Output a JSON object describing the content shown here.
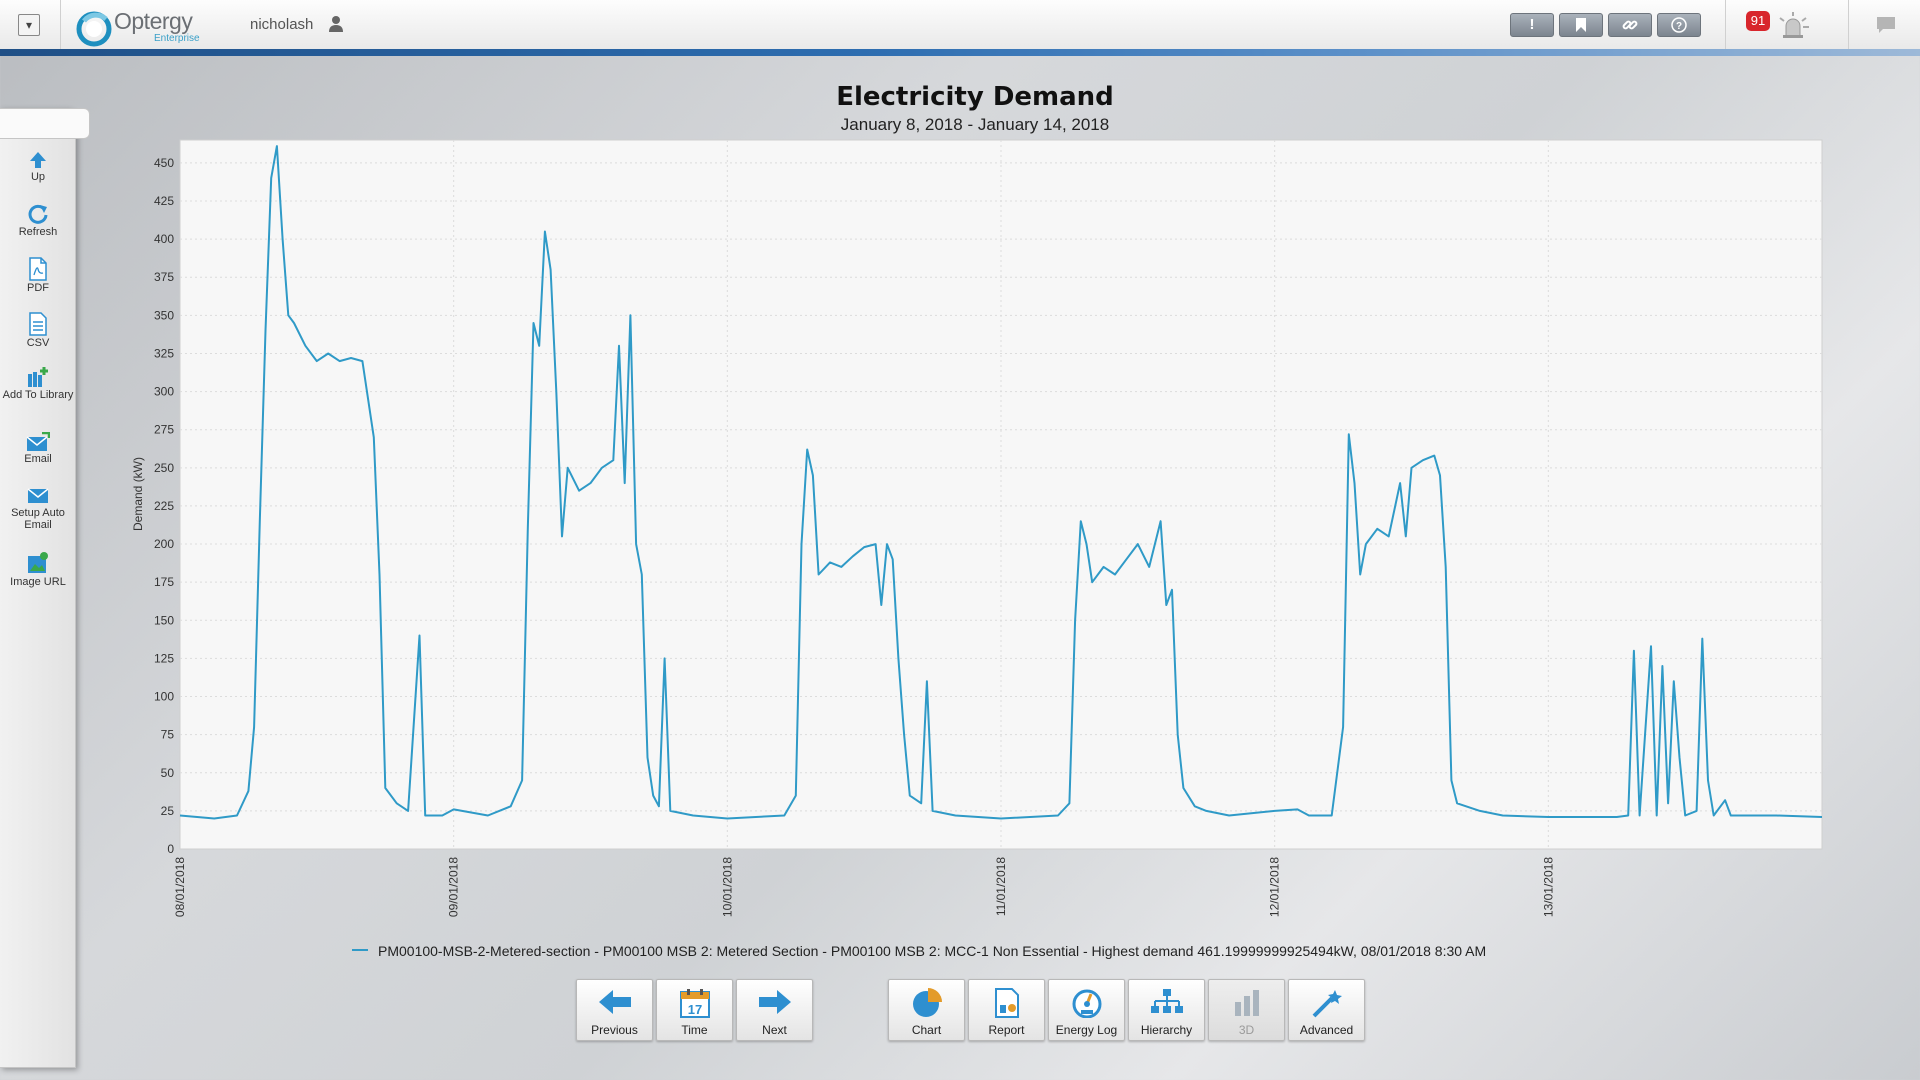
{
  "header": {
    "logo_name": "Optergy",
    "logo_sub": "Enterprise",
    "username": "nicholash",
    "toolbar_buttons": [
      "exclamation-icon",
      "bookmark-icon",
      "link-icon",
      "help-icon"
    ],
    "alarm_count": "91"
  },
  "sidebar": {
    "items": [
      {
        "label": "Up",
        "icon": "up-arrow-icon"
      },
      {
        "label": "Refresh",
        "icon": "refresh-icon"
      },
      {
        "label": "PDF",
        "icon": "pdf-icon"
      },
      {
        "label": "CSV",
        "icon": "csv-icon"
      },
      {
        "label": "Add To Library",
        "icon": "add-library-icon"
      },
      {
        "label": "Email",
        "icon": "email-icon"
      },
      {
        "label": "Setup Auto Email",
        "icon": "auto-email-icon"
      },
      {
        "label": "Image URL",
        "icon": "image-url-icon"
      }
    ]
  },
  "chart_data": {
    "type": "line",
    "title": "Electricity Demand",
    "subtitle": "January 8, 2018 - January 14, 2018",
    "ylabel": "Demand (kW)",
    "xlabel": "",
    "ylim": [
      0,
      465
    ],
    "xlim": [
      0,
      6
    ],
    "yticks": [
      0,
      25,
      50,
      75,
      100,
      125,
      150,
      175,
      200,
      225,
      250,
      275,
      300,
      325,
      350,
      375,
      400,
      425,
      450
    ],
    "xticks": [
      "08/01/2018",
      "09/01/2018",
      "10/01/2018",
      "11/01/2018",
      "12/01/2018",
      "13/01/2018"
    ],
    "grid": true,
    "color": "#2f9ac7",
    "series": [
      {
        "name": "PM00100-MSB-2-Metered-section - PM00100 MSB 2: Metered Section - PM00100 MSB 2: MCC-1 Non Essential - Highest demand 461.19999999925494kW, 08/01/2018 8:30 AM",
        "points": [
          [
            "08/01/2018 00:00",
            22
          ],
          [
            "08/01/2018 03:00",
            20
          ],
          [
            "08/01/2018 05:00",
            22
          ],
          [
            "08/01/2018 06:00",
            38
          ],
          [
            "08/01/2018 06:30",
            80
          ],
          [
            "08/01/2018 07:00",
            215
          ],
          [
            "08/01/2018 07:30",
            340
          ],
          [
            "08/01/2018 08:00",
            440
          ],
          [
            "08/01/2018 08:30",
            461
          ],
          [
            "08/01/2018 09:00",
            400
          ],
          [
            "08/01/2018 09:30",
            350
          ],
          [
            "08/01/2018 10:00",
            345
          ],
          [
            "08/01/2018 11:00",
            330
          ],
          [
            "08/01/2018 12:00",
            320
          ],
          [
            "08/01/2018 13:00",
            325
          ],
          [
            "08/01/2018 14:00",
            320
          ],
          [
            "08/01/2018 15:00",
            322
          ],
          [
            "08/01/2018 16:00",
            320
          ],
          [
            "08/01/2018 17:00",
            270
          ],
          [
            "08/01/2018 17:30",
            180
          ],
          [
            "08/01/2018 18:00",
            40
          ],
          [
            "08/01/2018 19:00",
            30
          ],
          [
            "08/01/2018 20:00",
            25
          ],
          [
            "08/01/2018 21:00",
            140
          ],
          [
            "08/01/2018 21:30",
            22
          ],
          [
            "08/01/2018 23:00",
            22
          ],
          [
            "09/01/2018 00:00",
            26
          ],
          [
            "09/01/2018 03:00",
            22
          ],
          [
            "09/01/2018 05:00",
            28
          ],
          [
            "09/01/2018 06:00",
            45
          ],
          [
            "09/01/2018 06:30",
            210
          ],
          [
            "09/01/2018 07:00",
            345
          ],
          [
            "09/01/2018 07:30",
            330
          ],
          [
            "09/01/2018 08:00",
            405
          ],
          [
            "09/01/2018 08:30",
            380
          ],
          [
            "09/01/2018 09:00",
            300
          ],
          [
            "09/01/2018 09:30",
            205
          ],
          [
            "09/01/2018 10:00",
            250
          ],
          [
            "09/01/2018 11:00",
            235
          ],
          [
            "09/01/2018 12:00",
            240
          ],
          [
            "09/01/2018 13:00",
            250
          ],
          [
            "09/01/2018 14:00",
            255
          ],
          [
            "09/01/2018 14:30",
            330
          ],
          [
            "09/01/2018 15:00",
            240
          ],
          [
            "09/01/2018 15:30",
            350
          ],
          [
            "09/01/2018 16:00",
            200
          ],
          [
            "09/01/2018 16:30",
            180
          ],
          [
            "09/01/2018 17:00",
            60
          ],
          [
            "09/01/2018 17:30",
            35
          ],
          [
            "09/01/2018 18:00",
            28
          ],
          [
            "09/01/2018 18:30",
            125
          ],
          [
            "09/01/2018 19:00",
            25
          ],
          [
            "09/01/2018 21:00",
            22
          ],
          [
            "10/01/2018 00:00",
            20
          ],
          [
            "10/01/2018 05:00",
            22
          ],
          [
            "10/01/2018 06:00",
            35
          ],
          [
            "10/01/2018 06:30",
            200
          ],
          [
            "10/01/2018 07:00",
            262
          ],
          [
            "10/01/2018 07:30",
            245
          ],
          [
            "10/01/2018 08:00",
            180
          ],
          [
            "10/01/2018 09:00",
            188
          ],
          [
            "10/01/2018 10:00",
            185
          ],
          [
            "10/01/2018 11:00",
            192
          ],
          [
            "10/01/2018 12:00",
            198
          ],
          [
            "10/01/2018 13:00",
            200
          ],
          [
            "10/01/2018 13:30",
            160
          ],
          [
            "10/01/2018 14:00",
            200
          ],
          [
            "10/01/2018 14:30",
            190
          ],
          [
            "10/01/2018 15:00",
            125
          ],
          [
            "10/01/2018 15:30",
            75
          ],
          [
            "10/01/2018 16:00",
            35
          ],
          [
            "10/01/2018 17:00",
            30
          ],
          [
            "10/01/2018 17:30",
            110
          ],
          [
            "10/01/2018 18:00",
            25
          ],
          [
            "10/01/2018 20:00",
            22
          ],
          [
            "11/01/2018 00:00",
            20
          ],
          [
            "11/01/2018 05:00",
            22
          ],
          [
            "11/01/2018 06:00",
            30
          ],
          [
            "11/01/2018 06:30",
            150
          ],
          [
            "11/01/2018 07:00",
            215
          ],
          [
            "11/01/2018 07:30",
            200
          ],
          [
            "11/01/2018 08:00",
            175
          ],
          [
            "11/01/2018 09:00",
            185
          ],
          [
            "11/01/2018 10:00",
            180
          ],
          [
            "11/01/2018 11:00",
            190
          ],
          [
            "11/01/2018 12:00",
            200
          ],
          [
            "11/01/2018 13:00",
            185
          ],
          [
            "11/01/2018 14:00",
            215
          ],
          [
            "11/01/2018 14:30",
            160
          ],
          [
            "11/01/2018 15:00",
            170
          ],
          [
            "11/01/2018 15:30",
            75
          ],
          [
            "11/01/2018 16:00",
            40
          ],
          [
            "11/01/2018 17:00",
            28
          ],
          [
            "11/01/2018 18:00",
            25
          ],
          [
            "11/01/2018 20:00",
            22
          ],
          [
            "12/01/2018 00:00",
            25
          ],
          [
            "12/01/2018 02:00",
            26
          ],
          [
            "12/01/2018 03:00",
            22
          ],
          [
            "12/01/2018 05:00",
            22
          ],
          [
            "12/01/2018 06:00",
            80
          ],
          [
            "12/01/2018 06:30",
            272
          ],
          [
            "12/01/2018 07:00",
            240
          ],
          [
            "12/01/2018 07:30",
            180
          ],
          [
            "12/01/2018 08:00",
            200
          ],
          [
            "12/01/2018 09:00",
            210
          ],
          [
            "12/01/2018 10:00",
            205
          ],
          [
            "12/01/2018 11:00",
            240
          ],
          [
            "12/01/2018 11:30",
            205
          ],
          [
            "12/01/2018 12:00",
            250
          ],
          [
            "12/01/2018 13:00",
            255
          ],
          [
            "12/01/2018 14:00",
            258
          ],
          [
            "12/01/2018 14:30",
            245
          ],
          [
            "12/01/2018 15:00",
            185
          ],
          [
            "12/01/2018 15:30",
            45
          ],
          [
            "12/01/2018 16:00",
            30
          ],
          [
            "12/01/2018 18:00",
            25
          ],
          [
            "12/01/2018 20:00",
            22
          ],
          [
            "13/01/2018 00:00",
            21
          ],
          [
            "13/01/2018 06:00",
            21
          ],
          [
            "13/01/2018 07:00",
            22
          ],
          [
            "13/01/2018 07:30",
            130
          ],
          [
            "13/01/2018 08:00",
            22
          ],
          [
            "13/01/2018 09:00",
            133
          ],
          [
            "13/01/2018 09:30",
            22
          ],
          [
            "13/01/2018 10:00",
            120
          ],
          [
            "13/01/2018 10:30",
            30
          ],
          [
            "13/01/2018 11:00",
            110
          ],
          [
            "13/01/2018 11:30",
            60
          ],
          [
            "13/01/2018 12:00",
            22
          ],
          [
            "13/01/2018 13:00",
            25
          ],
          [
            "13/01/2018 13:30",
            138
          ],
          [
            "13/01/2018 14:00",
            45
          ],
          [
            "13/01/2018 14:30",
            22
          ],
          [
            "13/01/2018 15:30",
            32
          ],
          [
            "13/01/2018 16:00",
            22
          ],
          [
            "13/01/2018 20:00",
            22
          ],
          [
            "14/01/2018 00:00",
            21
          ]
        ]
      }
    ]
  },
  "legend": {
    "text": "PM00100-MSB-2-Metered-section - PM00100 MSB 2: Metered Section - PM00100 MSB 2: MCC-1 Non Essential - Highest demand 461.19999999925494kW, 08/01/2018 8:30 AM"
  },
  "bottom_toolbar": {
    "buttons": [
      {
        "label": "Previous",
        "icon": "previous-arrow-icon"
      },
      {
        "label": "Time",
        "icon": "calendar-icon",
        "icon_text": "17"
      },
      {
        "label": "Next",
        "icon": "next-arrow-icon"
      },
      {
        "label": "Chart",
        "icon": "pie-chart-icon"
      },
      {
        "label": "Report",
        "icon": "report-icon"
      },
      {
        "label": "Energy Log",
        "icon": "gauge-icon"
      },
      {
        "label": "Hierarchy",
        "icon": "hierarchy-icon"
      },
      {
        "label": "3D",
        "icon": "3d-bars-icon",
        "disabled": true
      },
      {
        "label": "Advanced",
        "icon": "magic-wand-icon"
      }
    ]
  }
}
